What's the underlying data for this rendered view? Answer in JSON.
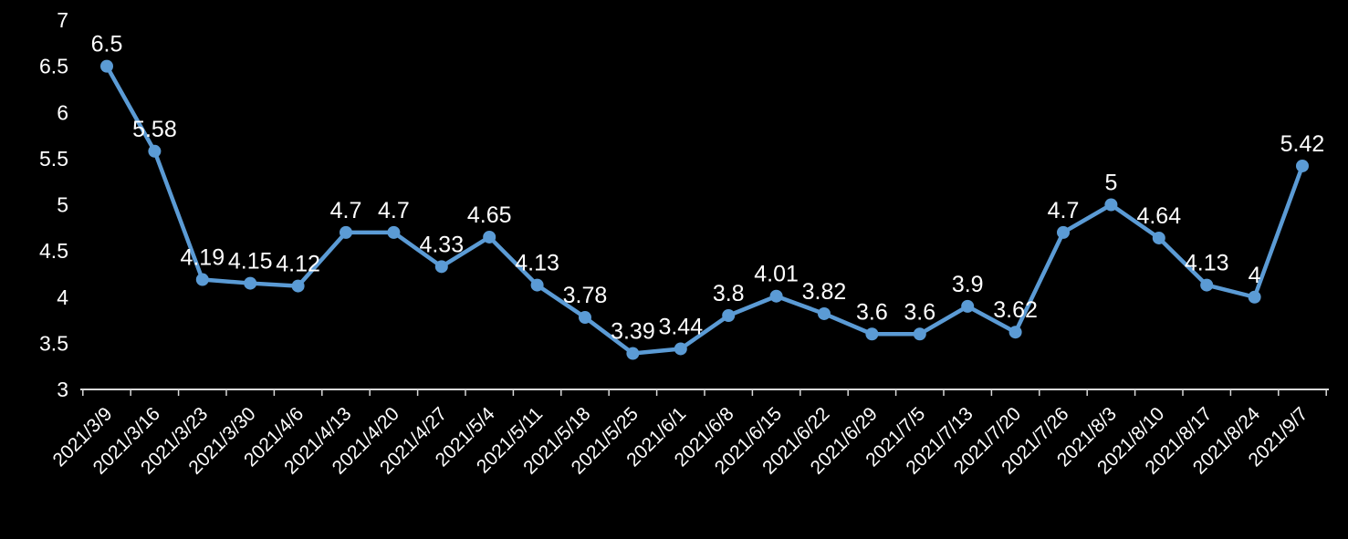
{
  "chart_data": {
    "type": "line",
    "title": "",
    "xlabel": "",
    "ylabel": "",
    "x": [
      "2021/3/9",
      "2021/3/16",
      "2021/3/23",
      "2021/3/30",
      "2021/4/6",
      "2021/4/13",
      "2021/4/20",
      "2021/4/27",
      "2021/5/4",
      "2021/5/11",
      "2021/5/18",
      "2021/5/25",
      "2021/6/1",
      "2021/6/8",
      "2021/6/15",
      "2021/6/22",
      "2021/6/29",
      "2021/7/5",
      "2021/7/13",
      "2021/7/20",
      "2021/7/26",
      "2021/8/3",
      "2021/8/10",
      "2021/8/17",
      "2021/8/24",
      "2021/9/7"
    ],
    "values": [
      6.5,
      5.58,
      4.19,
      4.15,
      4.12,
      4.7,
      4.7,
      4.33,
      4.65,
      4.13,
      3.78,
      3.39,
      3.44,
      3.8,
      4.01,
      3.82,
      3.6,
      3.6,
      3.9,
      3.62,
      4.7,
      5,
      4.64,
      4.13,
      4,
      5.42
    ],
    "data_labels": [
      "6.5",
      "5.58",
      "4.19",
      "4.15",
      "4.12",
      "4.7",
      "4.7",
      "4.33",
      "4.65",
      "4.13",
      "3.78",
      "3.39",
      "3.44",
      "3.8",
      "4.01",
      "3.82",
      "3.6",
      "3.6",
      "3.9",
      "3.62",
      "4.7",
      "5",
      "4.64",
      "4.13",
      "4",
      "5.42"
    ],
    "ylim": [
      3,
      7
    ],
    "yticks": [
      3,
      3.5,
      4,
      4.5,
      5,
      5.5,
      6,
      6.5,
      7
    ],
    "ytick_labels": [
      "3",
      "3.5",
      "4",
      "4.5",
      "5",
      "5.5",
      "6",
      "6.5",
      "7"
    ],
    "grid": false,
    "legend_position": "none",
    "colors": {
      "background": "#000000",
      "line": "#5B9BD5",
      "marker": "#5B9BD5",
      "text": "#FFFFFF",
      "axis": "#D9D9D9"
    }
  }
}
